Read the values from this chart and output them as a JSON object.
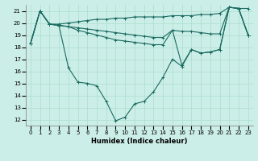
{
  "xlabel": "Humidex (Indice chaleur)",
  "ylabel": "",
  "bg_color": "#cceee8",
  "grid_color": "#aaddcc",
  "line_color": "#1a6b60",
  "xlim": [
    -0.5,
    23.5
  ],
  "ylim": [
    11.5,
    21.5
  ],
  "xticks": [
    0,
    1,
    2,
    3,
    4,
    5,
    6,
    7,
    8,
    9,
    10,
    11,
    12,
    13,
    14,
    15,
    16,
    17,
    18,
    19,
    20,
    21,
    22,
    23
  ],
  "yticks": [
    12,
    13,
    14,
    15,
    16,
    17,
    18,
    19,
    20,
    21
  ],
  "lines": [
    [
      18.3,
      21.0,
      19.9,
      19.9,
      20.0,
      20.1,
      20.2,
      20.3,
      20.3,
      20.4,
      20.4,
      20.5,
      20.5,
      20.5,
      20.5,
      20.6,
      20.6,
      20.6,
      20.7,
      20.7,
      20.8,
      21.3,
      21.2,
      21.2
    ],
    [
      18.3,
      21.0,
      19.9,
      19.8,
      19.7,
      19.6,
      19.5,
      19.4,
      19.3,
      19.2,
      19.1,
      19.0,
      18.9,
      18.8,
      18.8,
      19.4,
      19.3,
      19.3,
      19.2,
      19.1,
      19.1,
      21.3,
      21.2,
      19.0
    ],
    [
      18.3,
      21.0,
      19.9,
      19.8,
      19.7,
      19.4,
      19.2,
      19.0,
      18.8,
      18.6,
      18.5,
      18.4,
      18.3,
      18.2,
      18.2,
      19.4,
      16.5,
      17.8,
      17.5,
      17.6,
      17.8,
      21.3,
      21.2,
      19.0
    ],
    [
      18.3,
      21.0,
      19.9,
      19.8,
      16.3,
      15.1,
      15.0,
      14.8,
      13.5,
      11.9,
      12.2,
      13.3,
      13.5,
      14.3,
      15.5,
      17.0,
      16.4,
      17.8,
      17.5,
      17.6,
      17.8,
      21.3,
      21.2,
      19.0
    ]
  ]
}
